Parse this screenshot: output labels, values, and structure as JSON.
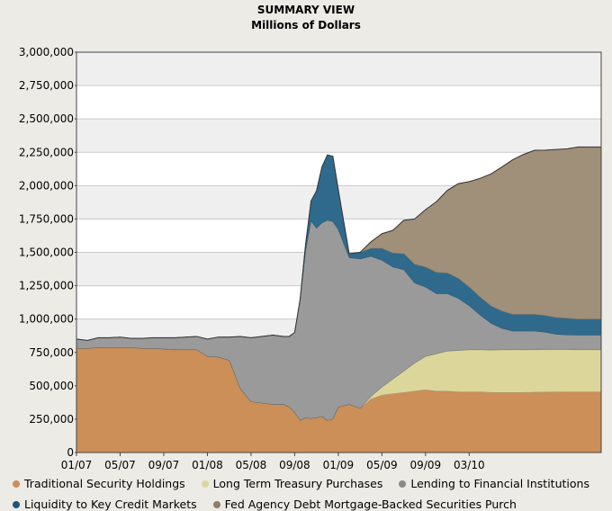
{
  "chart_data": {
    "type": "area",
    "stacked": true,
    "title": "SUMMARY VIEW",
    "subtitle": "Millions of Dollars",
    "xlabel": "",
    "ylabel": "",
    "ylim": [
      0,
      3000000
    ],
    "grid": true,
    "legend_position": "bottom",
    "y_ticks": [
      {
        "value": 0,
        "label": "0"
      },
      {
        "value": 250000,
        "label": "250,000"
      },
      {
        "value": 500000,
        "label": "500,000"
      },
      {
        "value": 750000,
        "label": "750,000"
      },
      {
        "value": 1000000,
        "label": "1,000,000"
      },
      {
        "value": 1250000,
        "label": "1,250,000"
      },
      {
        "value": 1500000,
        "label": "1,500,000"
      },
      {
        "value": 1750000,
        "label": "1,750,000"
      },
      {
        "value": 2000000,
        "label": "2,000,000"
      },
      {
        "value": 2250000,
        "label": "2,250,000"
      },
      {
        "value": 2500000,
        "label": "2,500,000"
      },
      {
        "value": 2750000,
        "label": "2,750,000"
      },
      {
        "value": 3000000,
        "label": "3,000,000"
      }
    ],
    "x_range": [
      0,
      48.1
    ],
    "x_ticks": [
      {
        "value": 0,
        "label": "01/07"
      },
      {
        "value": 4,
        "label": "05/07"
      },
      {
        "value": 8,
        "label": "09/07"
      },
      {
        "value": 12,
        "label": "01/08"
      },
      {
        "value": 16,
        "label": "05/08"
      },
      {
        "value": 20,
        "label": "09/08"
      },
      {
        "value": 24,
        "label": "01/09"
      },
      {
        "value": 28,
        "label": "05/09"
      },
      {
        "value": 32,
        "label": "09/09"
      },
      {
        "value": 36,
        "label": "03/10"
      }
    ],
    "x": [
      0,
      1,
      2,
      3,
      4,
      5,
      6,
      7,
      8,
      9,
      10,
      11,
      12,
      13,
      14,
      15,
      16,
      17,
      18,
      19,
      19.5,
      20,
      20.5,
      21,
      21.5,
      22,
      22.5,
      23,
      23.5,
      24,
      25,
      26,
      27,
      28,
      29,
      30,
      31,
      32,
      33,
      34,
      35,
      36,
      37,
      38,
      39,
      40,
      41,
      42,
      43,
      44,
      45,
      46,
      47,
      48.1
    ],
    "series": [
      {
        "name": "Traditional Security Holdings",
        "color": "#cc8f58",
        "values": [
          780000,
          780000,
          785000,
          785000,
          785000,
          785000,
          780000,
          780000,
          775000,
          770000,
          770000,
          770000,
          720000,
          715000,
          690000,
          480000,
          380000,
          370000,
          360000,
          360000,
          340000,
          300000,
          240000,
          260000,
          255000,
          260000,
          270000,
          240000,
          250000,
          340000,
          360000,
          330000,
          400000,
          430000,
          440000,
          450000,
          460000,
          470000,
          460000,
          460000,
          455000,
          455000,
          455000,
          450000,
          450000,
          450000,
          450000,
          452000,
          453000,
          454000,
          455000,
          455000,
          455000,
          455000
        ]
      },
      {
        "name": "Long Term Treasury Purchases",
        "color": "#dcd69a",
        "values": [
          0,
          0,
          0,
          0,
          0,
          0,
          0,
          0,
          0,
          0,
          0,
          0,
          0,
          0,
          0,
          0,
          0,
          0,
          0,
          0,
          0,
          0,
          0,
          0,
          0,
          0,
          0,
          0,
          0,
          0,
          0,
          0,
          20000,
          60000,
          110000,
          160000,
          210000,
          250000,
          280000,
          300000,
          310000,
          315000,
          315000,
          318000,
          320000,
          320000,
          320000,
          318000,
          318000,
          317000,
          316000,
          315000,
          315000,
          315000
        ]
      },
      {
        "name": "Lending to Financial Institutions",
        "color": "#9a9a9a",
        "values": [
          70000,
          60000,
          75000,
          75000,
          80000,
          70000,
          75000,
          80000,
          85000,
          90000,
          95000,
          100000,
          130000,
          150000,
          175000,
          390000,
          480000,
          500000,
          520000,
          510000,
          530000,
          600000,
          900000,
          1250000,
          1480000,
          1420000,
          1450000,
          1500000,
          1480000,
          1330000,
          1100000,
          1120000,
          1050000,
          950000,
          840000,
          760000,
          600000,
          520000,
          450000,
          430000,
          390000,
          330000,
          260000,
          200000,
          160000,
          140000,
          140000,
          140000,
          130000,
          115000,
          110000,
          110000,
          110000,
          110000
        ]
      },
      {
        "name": "Liquidity to Key Credit Markets",
        "color": "#2f6a8d",
        "values": [
          0,
          0,
          0,
          0,
          0,
          0,
          0,
          0,
          0,
          0,
          0,
          0,
          0,
          0,
          0,
          0,
          0,
          0,
          0,
          0,
          0,
          0,
          10000,
          50000,
          150000,
          280000,
          420000,
          490000,
          490000,
          300000,
          30000,
          50000,
          60000,
          90000,
          105000,
          120000,
          140000,
          150000,
          160000,
          155000,
          150000,
          140000,
          135000,
          130000,
          130000,
          125000,
          125000,
          125000,
          125000,
          125000,
          125000,
          120000,
          120000,
          120000
        ]
      },
      {
        "name": "Fed Agency Debt  Mortgage-Backed Securities Purch",
        "color": "#a08f79",
        "values": [
          0,
          0,
          0,
          0,
          0,
          0,
          0,
          0,
          0,
          0,
          0,
          0,
          0,
          0,
          0,
          0,
          0,
          0,
          0,
          0,
          0,
          0,
          0,
          0,
          0,
          0,
          0,
          0,
          0,
          0,
          0,
          0,
          50000,
          110000,
          170000,
          250000,
          340000,
          430000,
          530000,
          620000,
          710000,
          790000,
          890000,
          990000,
          1080000,
          1160000,
          1200000,
          1230000,
          1240000,
          1260000,
          1270000,
          1290000,
          1290000,
          1290000
        ]
      }
    ]
  }
}
